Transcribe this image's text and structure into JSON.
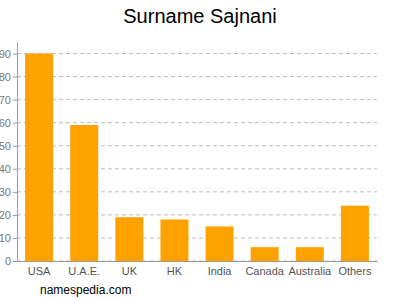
{
  "chart_data": {
    "type": "bar",
    "title": "Surname Sajnani",
    "categories": [
      "USA",
      "U.A.E.",
      "UK",
      "HK",
      "India",
      "Canada",
      "Australia",
      "Others"
    ],
    "values": [
      90,
      59,
      19,
      18,
      15,
      6,
      6,
      24
    ],
    "color": "#ffa200",
    "ylim": [
      0,
      95
    ],
    "yticks": [
      0,
      10,
      20,
      30,
      40,
      50,
      60,
      70,
      80,
      90
    ],
    "grid": true,
    "annotations": [
      "namespedia.com"
    ]
  }
}
